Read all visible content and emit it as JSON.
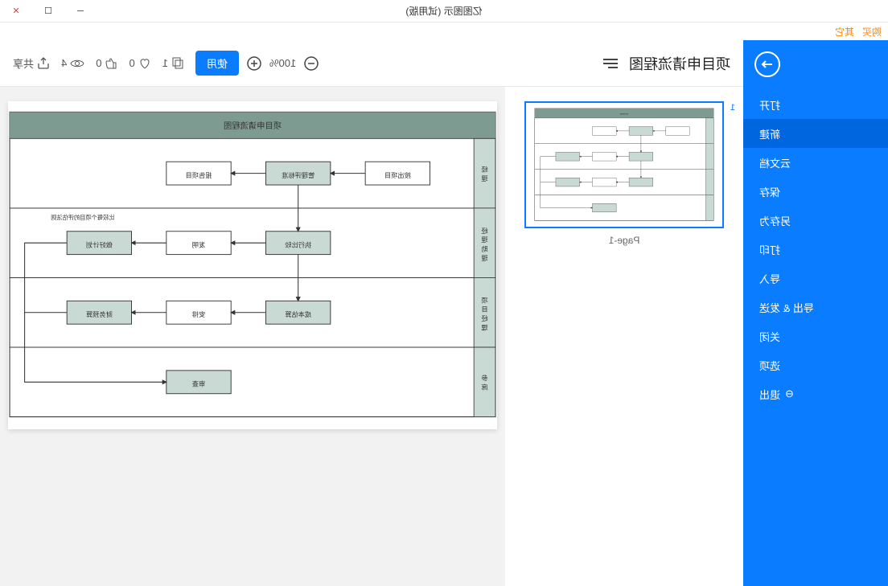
{
  "window": {
    "title": "亿图图示 (试用版)"
  },
  "menubar": {
    "items": [
      "购买",
      "其它"
    ]
  },
  "sidebar": {
    "items": [
      {
        "label": "打开"
      },
      {
        "label": "新建",
        "active": true
      },
      {
        "label": "云文档"
      },
      {
        "label": "保存"
      },
      {
        "label": "另存为"
      },
      {
        "label": "打印"
      },
      {
        "label": "导入"
      },
      {
        "label": "导出 & 发送"
      },
      {
        "label": "关闭"
      },
      {
        "label": "选项"
      },
      {
        "label": "退出",
        "icon": true
      }
    ]
  },
  "toolbar": {
    "doc_title": "项目申请流程图",
    "zoom": "100%",
    "use_btn": "使用",
    "copies": "1",
    "likes": "0",
    "favs": "0",
    "views": "4",
    "share": "共享"
  },
  "thumbnail": {
    "page_number": "1",
    "label": "Page-1"
  },
  "flowchart": {
    "title": "项目申请流程图",
    "colors": {
      "header": "#7d9b91",
      "lane_fill": "#c9d9d3",
      "box_fill": "#c9d9d3",
      "box_white": "#ffffff",
      "border": "#333333",
      "bg": "#ffffff"
    },
    "lanes": [
      {
        "label": "经理"
      },
      {
        "label": "经理助理"
      },
      {
        "label": "项目经理"
      },
      {
        "label": "参席"
      }
    ],
    "nodes": [
      {
        "id": "n1",
        "lane": 0,
        "col": 0,
        "label": "按出项目",
        "fill": "white"
      },
      {
        "id": "n2",
        "lane": 0,
        "col": 1,
        "label": "管理评标准",
        "fill": "green"
      },
      {
        "id": "n3",
        "lane": 0,
        "col": 2,
        "label": "报告项目",
        "fill": "white"
      },
      {
        "id": "n4",
        "lane": 1,
        "col": 1,
        "label": "执行比较",
        "fill": "green"
      },
      {
        "id": "n5",
        "lane": 1,
        "col": 2,
        "label": "发明",
        "fill": "white"
      },
      {
        "id": "n6",
        "lane": 1,
        "col": 3,
        "label": "做好计划",
        "fill": "green"
      },
      {
        "id": "n7",
        "lane": 2,
        "col": 1,
        "label": "成本估算",
        "fill": "green"
      },
      {
        "id": "n8",
        "lane": 2,
        "col": 2,
        "label": "安排",
        "fill": "white"
      },
      {
        "id": "n9",
        "lane": 2,
        "col": 3,
        "label": "财务预算",
        "fill": "green"
      },
      {
        "id": "n10",
        "lane": 3,
        "col": 2,
        "label": "审查",
        "fill": "green"
      }
    ],
    "lane1_note": "比较每个项目的评估法则",
    "edges": [
      [
        "n1",
        "n2"
      ],
      [
        "n2",
        "n3"
      ],
      [
        "n2",
        "n4"
      ],
      [
        "n4",
        "n5"
      ],
      [
        "n5",
        "n6"
      ],
      [
        "n4",
        "n7"
      ],
      [
        "n7",
        "n8"
      ],
      [
        "n8",
        "n9"
      ],
      [
        "n6",
        "n10_via"
      ],
      [
        "n9",
        "n10_via"
      ]
    ]
  }
}
